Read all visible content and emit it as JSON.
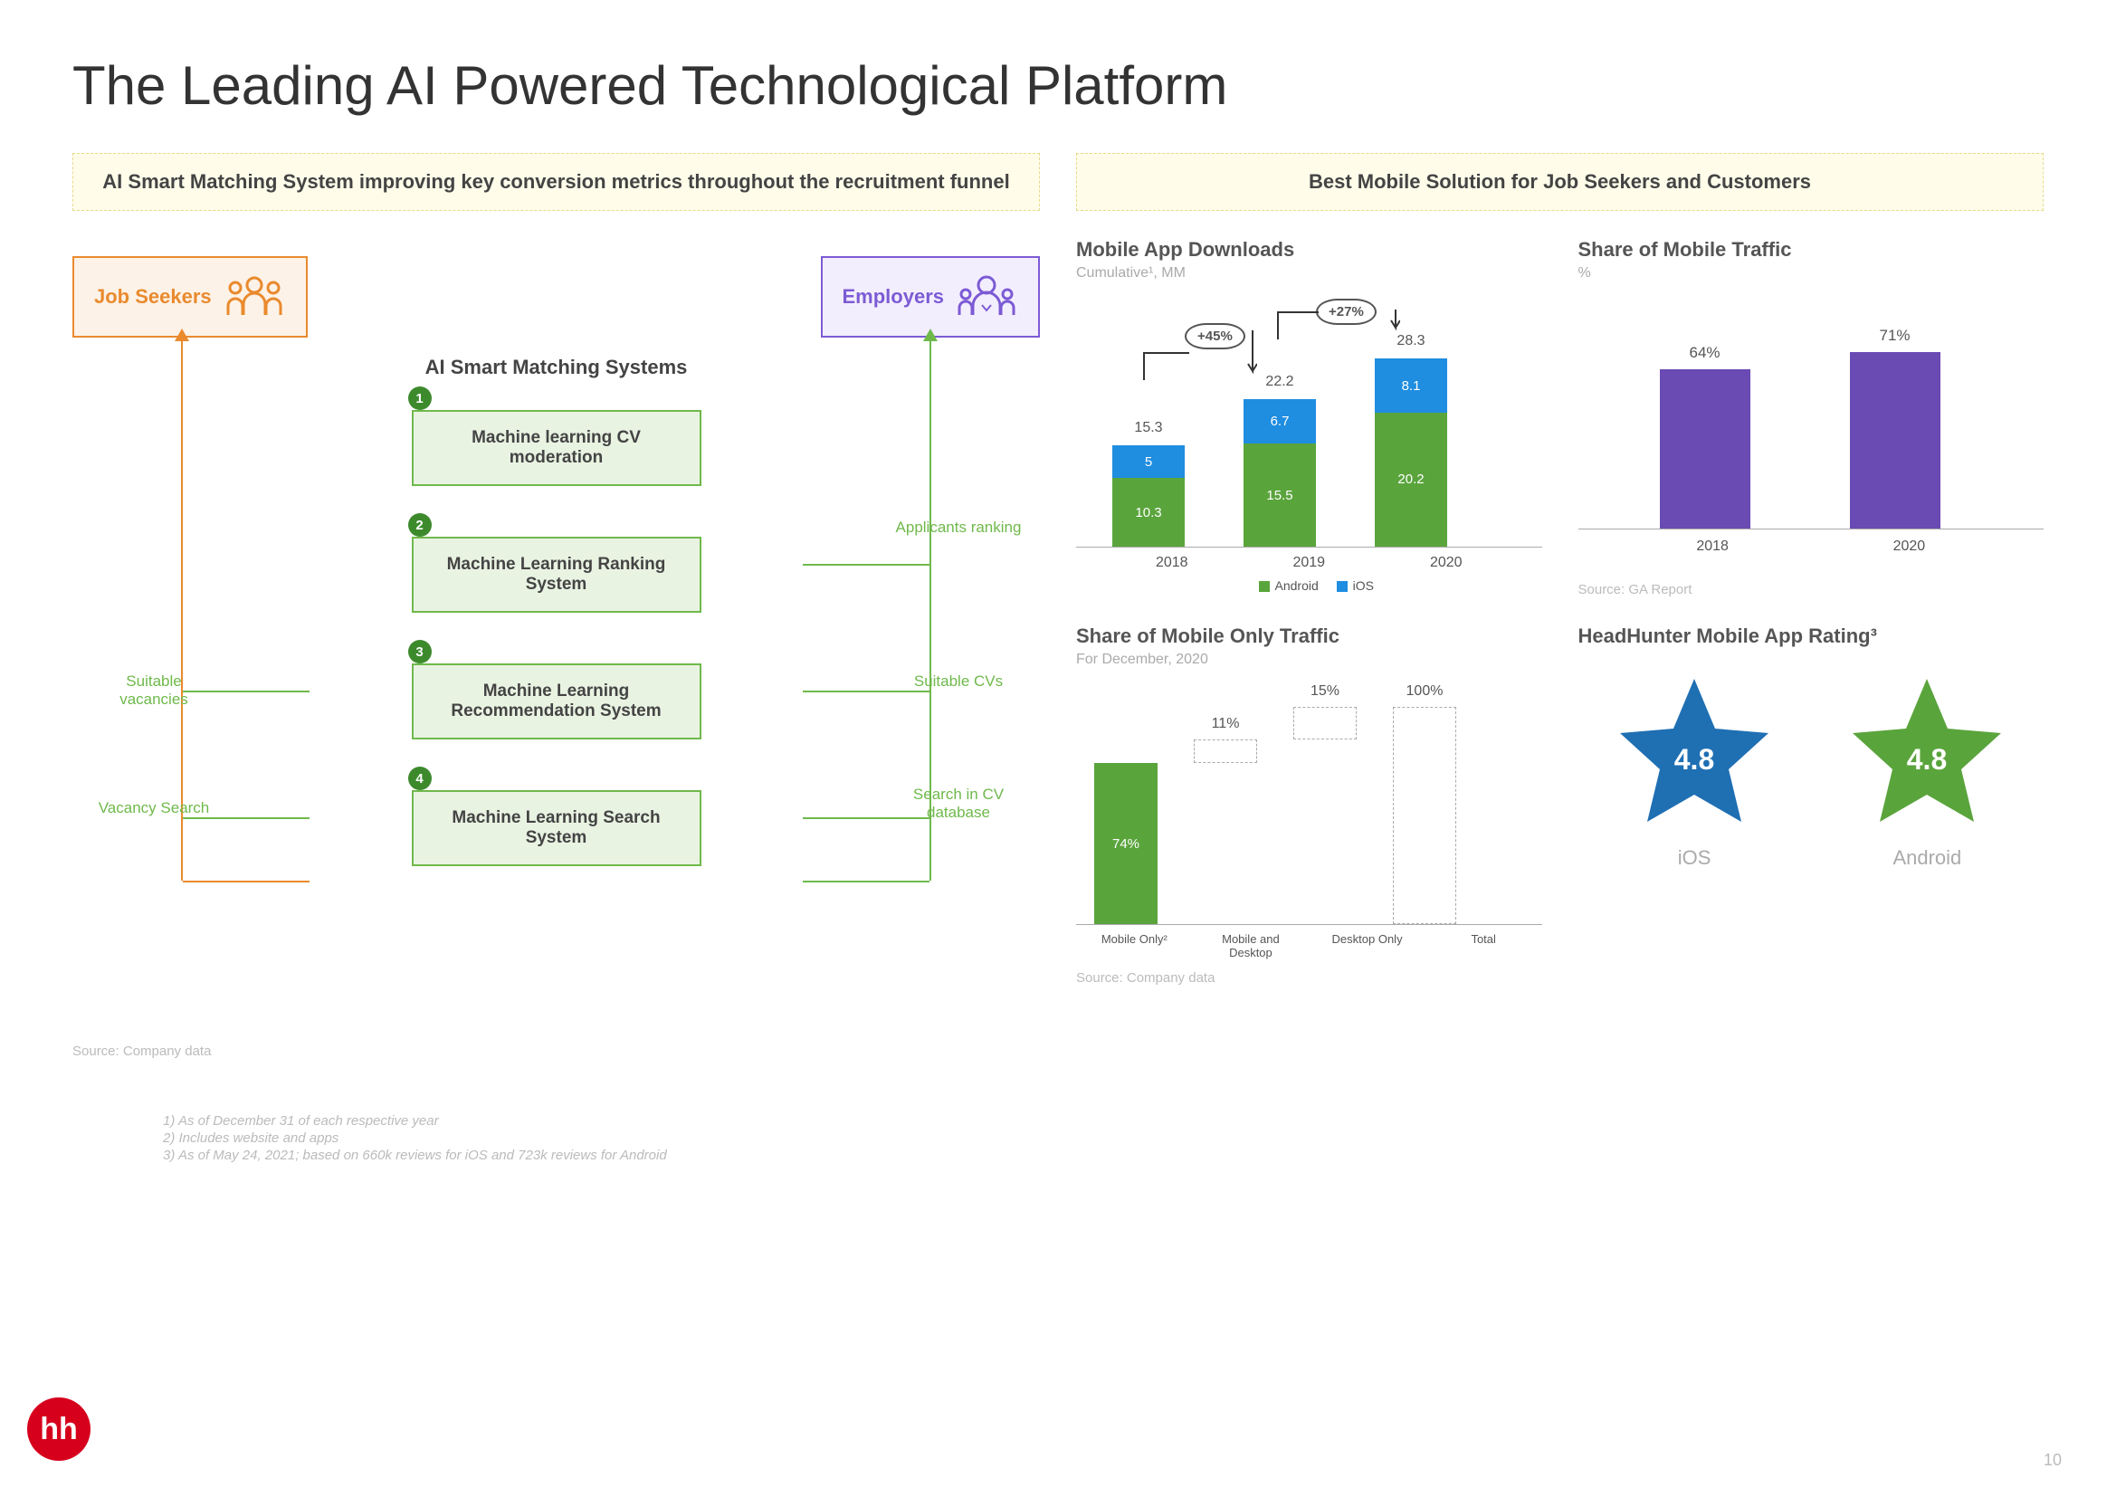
{
  "page_title": "The Leading AI Powered Technological Platform",
  "page_num": "10",
  "logo_text": "hh",
  "left": {
    "banner": "AI Smart Matching System improving key conversion metrics throughout the recruitment funnel",
    "job_seekers": "Job Seekers",
    "employers": "Employers",
    "ai_title": "AI Smart Matching Systems",
    "boxes": [
      {
        "num": "1",
        "label": "Machine learning CV moderation",
        "right_label": ""
      },
      {
        "num": "2",
        "label": "Machine Learning Ranking System",
        "right_label": "Applicants ranking"
      },
      {
        "num": "3",
        "label": "Machine Learning Recommendation System",
        "left_label": "Suitable vacancies",
        "right_label": "Suitable CVs"
      },
      {
        "num": "4",
        "label": "Machine Learning Search System",
        "left_label": "Vacancy Search",
        "right_label": "Search in CV database"
      }
    ],
    "source": "Source: Company data"
  },
  "right": {
    "banner": "Best Mobile Solution for Job Seekers and Customers",
    "downloads": {
      "title": "Mobile App Downloads",
      "sub": "Cumulative¹, MM",
      "years": [
        "2018",
        "2019",
        "2020"
      ],
      "android": [
        10.3,
        15.5,
        20.2
      ],
      "ios": [
        5.0,
        6.7,
        8.1
      ],
      "totals": [
        15.3,
        22.2,
        28.3
      ],
      "growth": [
        "+45%",
        "+27%"
      ],
      "colors": {
        "android": "#5aa43c",
        "ios": "#1f8de0"
      },
      "legend": {
        "android": "Android",
        "ios": "iOS"
      },
      "ymax": 30
    },
    "traffic": {
      "title": "Share of Mobile Traffic",
      "sub": "%",
      "years": [
        "2018",
        "2020"
      ],
      "values": [
        64,
        71
      ],
      "color": "#6a4ab3",
      "ymax": 80,
      "source": "Source: GA Report"
    },
    "monly": {
      "title": "Share of Mobile Only Traffic",
      "sub": "For December, 2020",
      "cats": [
        "Mobile Only²",
        "Mobile and Desktop",
        "Desktop Only",
        "Total"
      ],
      "values": [
        74,
        11,
        15,
        100
      ],
      "ghost": [
        false,
        true,
        true,
        true
      ],
      "bottoms": [
        0,
        74,
        85,
        0
      ],
      "colors": {
        "solid": "#5aa43c"
      },
      "ymax": 100,
      "source": "Source: Company data"
    },
    "rating": {
      "title": "HeadHunter Mobile App Rating³",
      "items": [
        {
          "label": "iOS",
          "value": "4.8",
          "color": "#1f6fb3"
        },
        {
          "label": "Android",
          "value": "4.8",
          "color": "#5aa43c"
        }
      ]
    }
  },
  "footnotes": [
    "1)   As of December 31 of each respective year",
    "2)   Includes website and apps",
    "3)   As of May 24, 2021; based on 660k reviews for iOS and 723k reviews for Android"
  ]
}
